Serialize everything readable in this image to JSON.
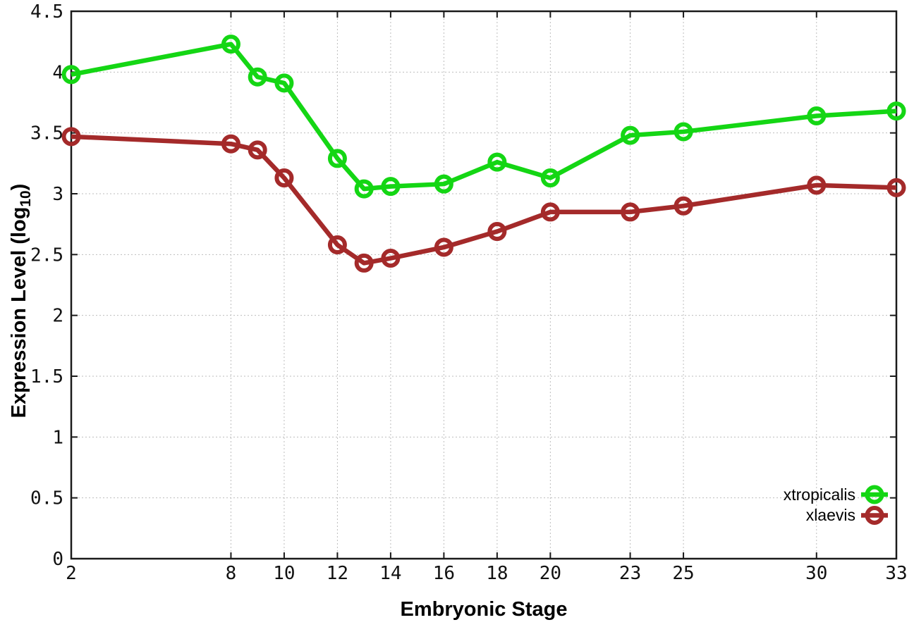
{
  "chart_data": {
    "type": "line",
    "title": "",
    "xlabel": "Embryonic Stage",
    "ylabel": "Expression Level (log10)",
    "ylabel_parts": {
      "pre": "Expression Level (log",
      "sub": "10",
      "post": ")"
    },
    "xlim": [
      2,
      33
    ],
    "ylim": [
      0,
      4.5
    ],
    "grid": true,
    "legend_position": "inside-bottom-right",
    "x": [
      2,
      8,
      9,
      10,
      12,
      13,
      14,
      16,
      18,
      20,
      23,
      25,
      30,
      33
    ],
    "xticks": [
      {
        "v": 2,
        "label": "2"
      },
      {
        "v": 8,
        "label": "8"
      },
      {
        "v": 10,
        "label": "10"
      },
      {
        "v": 12,
        "label": "12"
      },
      {
        "v": 14,
        "label": "14"
      },
      {
        "v": 16,
        "label": "16"
      },
      {
        "v": 18,
        "label": "18"
      },
      {
        "v": 20,
        "label": "20"
      },
      {
        "v": 23,
        "label": "23"
      },
      {
        "v": 25,
        "label": "25"
      },
      {
        "v": 30,
        "label": "30"
      },
      {
        "v": 33,
        "label": "33"
      }
    ],
    "yticks": [
      {
        "v": 0,
        "label": "0"
      },
      {
        "v": 0.5,
        "label": "0.5"
      },
      {
        "v": 1,
        "label": "1"
      },
      {
        "v": 1.5,
        "label": "1.5"
      },
      {
        "v": 2,
        "label": "2"
      },
      {
        "v": 2.5,
        "label": "2.5"
      },
      {
        "v": 3,
        "label": "3"
      },
      {
        "v": 3.5,
        "label": "3.5"
      },
      {
        "v": 4,
        "label": "4"
      },
      {
        "v": 4.5,
        "label": "4.5"
      }
    ],
    "series": [
      {
        "name": "xtropicalis",
        "color": "#14d614",
        "values": [
          3.98,
          4.23,
          3.96,
          3.91,
          3.29,
          3.04,
          3.06,
          3.08,
          3.26,
          3.13,
          3.48,
          3.51,
          3.64,
          3.68
        ]
      },
      {
        "name": "xlaevis",
        "color": "#a42a2a",
        "values": [
          3.47,
          3.41,
          3.36,
          3.13,
          2.58,
          2.43,
          2.47,
          2.56,
          2.69,
          2.85,
          2.85,
          2.9,
          3.07,
          3.05
        ]
      }
    ],
    "colors": {
      "grid": "#bdbdbd",
      "axis": "#1a1a1a",
      "text": "#111111"
    }
  }
}
